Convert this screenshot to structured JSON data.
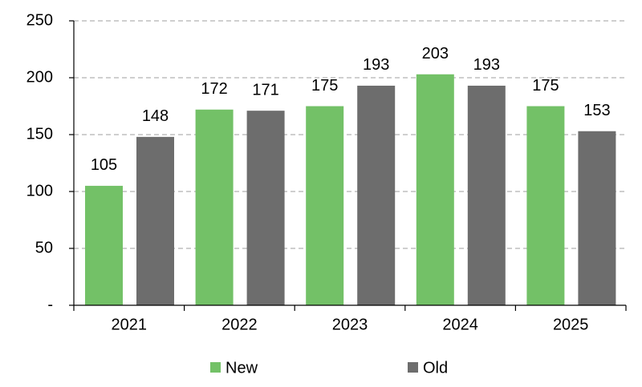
{
  "chart_data": {
    "type": "bar",
    "categories": [
      "2021",
      "2022",
      "2023",
      "2024",
      "2025"
    ],
    "series": [
      {
        "name": "New",
        "color": "#73c167",
        "values": [
          105,
          172,
          175,
          203,
          175
        ]
      },
      {
        "name": "Old",
        "color": "#6d6d6d",
        "values": [
          148,
          171,
          193,
          193,
          153
        ]
      }
    ],
    "ylim": [
      0,
      250
    ],
    "yticks": [
      {
        "value": 0,
        "label": "-"
      },
      50,
      100,
      150,
      200,
      250
    ],
    "grid": true,
    "legend": "bottom"
  }
}
